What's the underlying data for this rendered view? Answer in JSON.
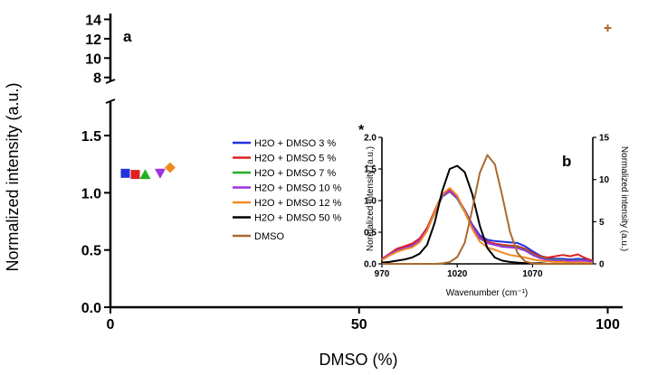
{
  "chart_data": [
    {
      "panel_label": "a",
      "type": "scatter",
      "xlabel": "DMSO (%)",
      "ylabel": "Normalized intensity (a.u.)",
      "xlim": [
        0,
        103
      ],
      "ylim_lower": [
        0,
        1.8
      ],
      "ylim_upper": [
        7.6,
        14.6
      ],
      "x_ticks": [
        "0",
        "50",
        "100"
      ],
      "y_ticks_lower": [
        "0.0",
        "0.5",
        "1.0",
        "1.5"
      ],
      "y_ticks_upper": [
        "8",
        "10",
        "12",
        "14"
      ],
      "series": [
        {
          "name": "H2O + DMSO 3 %",
          "color": "#2233dd",
          "marker": "square",
          "x": 3,
          "y": 1.17
        },
        {
          "name": "H2O + DMSO 5 %",
          "color": "#e02020",
          "marker": "square",
          "x": 5,
          "y": 1.16
        },
        {
          "name": "H2O + DMSO 7 %",
          "color": "#20b020",
          "marker": "triangle-up",
          "x": 7,
          "y": 1.16
        },
        {
          "name": "H2O + DMSO 10 %",
          "color": "#a030e0",
          "marker": "triangle-down",
          "x": 10,
          "y": 1.17
        },
        {
          "name": "H2O + DMSO 12 %",
          "color": "#f08a20",
          "marker": "diamond",
          "x": 12,
          "y": 1.22
        },
        {
          "name": "H2O + DMSO 50 %",
          "color": "#000000",
          "marker": "star",
          "x": 50,
          "y": null
        },
        {
          "name": "DMSO",
          "color": "#a86a2e",
          "marker": "plus",
          "x": 100,
          "y": 13.1
        }
      ],
      "legend_position": "center-right"
    },
    {
      "panel_label": "b",
      "type": "line",
      "xlabel": "Wavenumber (cm⁻¹)",
      "ylabel_left": "Normalized intensity (a.u.)",
      "ylabel_right": "Normalized intensity (a.u.)",
      "xlim": [
        970,
        1110
      ],
      "ylim_left": [
        0,
        2.0
      ],
      "ylim_right": [
        0,
        15
      ],
      "x_ticks": [
        "970",
        "1020",
        "1070"
      ],
      "y_ticks_left": [
        "0.0",
        "0.5",
        "1.0",
        "1.5",
        "2.0"
      ],
      "y_ticks_right": [
        "0",
        "5",
        "10",
        "15"
      ],
      "asterisk": "*",
      "x": [
        970,
        975,
        980,
        985,
        990,
        995,
        1000,
        1005,
        1010,
        1015,
        1020,
        1025,
        1030,
        1035,
        1040,
        1045,
        1050,
        1055,
        1060,
        1065,
        1070,
        1075,
        1080,
        1085,
        1090,
        1095,
        1100,
        1105,
        1110
      ],
      "series": [
        {
          "name": "H2O + DMSO 3 %",
          "color": "#2233dd",
          "axis": "left",
          "y": [
            0.08,
            0.15,
            0.22,
            0.26,
            0.3,
            0.38,
            0.55,
            0.82,
            1.08,
            1.16,
            1.05,
            0.85,
            0.62,
            0.45,
            0.38,
            0.36,
            0.35,
            0.34,
            0.33,
            0.28,
            0.2,
            0.13,
            0.09,
            0.08,
            0.08,
            0.07,
            0.08,
            0.07,
            0.05
          ]
        },
        {
          "name": "H2O + DMSO 5 %",
          "color": "#e02020",
          "axis": "left",
          "y": [
            0.08,
            0.16,
            0.24,
            0.28,
            0.32,
            0.4,
            0.57,
            0.84,
            1.1,
            1.18,
            1.06,
            0.84,
            0.6,
            0.42,
            0.35,
            0.32,
            0.3,
            0.29,
            0.28,
            0.24,
            0.17,
            0.12,
            0.1,
            0.12,
            0.14,
            0.12,
            0.15,
            0.09,
            0.05
          ]
        },
        {
          "name": "H2O + DMSO 7 %",
          "color": "#20b020",
          "axis": "left",
          "y": [
            0.07,
            0.14,
            0.2,
            0.24,
            0.28,
            0.36,
            0.53,
            0.8,
            1.06,
            1.14,
            1.03,
            0.82,
            0.58,
            0.4,
            0.33,
            0.3,
            0.28,
            0.27,
            0.26,
            0.22,
            0.15,
            0.1,
            0.07,
            0.06,
            0.06,
            0.05,
            0.06,
            0.05,
            0.04
          ]
        },
        {
          "name": "H2O + DMSO 10 %",
          "color": "#a030e0",
          "axis": "left",
          "y": [
            0.07,
            0.15,
            0.21,
            0.25,
            0.29,
            0.37,
            0.54,
            0.81,
            1.07,
            1.15,
            1.04,
            0.83,
            0.59,
            0.41,
            0.33,
            0.3,
            0.27,
            0.26,
            0.25,
            0.21,
            0.14,
            0.09,
            0.06,
            0.05,
            0.05,
            0.05,
            0.05,
            0.05,
            0.04
          ]
        },
        {
          "name": "H2O + DMSO 12 %",
          "color": "#f08a20",
          "axis": "left",
          "y": [
            0.06,
            0.13,
            0.19,
            0.23,
            0.26,
            0.34,
            0.52,
            0.82,
            1.1,
            1.2,
            1.08,
            0.82,
            0.55,
            0.35,
            0.26,
            0.22,
            0.18,
            0.14,
            0.12,
            0.1,
            0.07,
            0.05,
            0.04,
            0.03,
            0.03,
            0.02,
            0.02,
            0.02,
            0.01
          ]
        },
        {
          "name": "H2O + DMSO 50 %",
          "color": "#000000",
          "axis": "left",
          "y": [
            0.02,
            0.03,
            0.05,
            0.07,
            0.1,
            0.16,
            0.3,
            0.65,
            1.15,
            1.5,
            1.55,
            1.45,
            1.1,
            0.6,
            0.25,
            0.1,
            0.05,
            0.03,
            0.02,
            0.01,
            0.01,
            0.01,
            0.0,
            0.0,
            0.0,
            0.0,
            0.0,
            0.0,
            0.0
          ]
        },
        {
          "name": "DMSO",
          "color": "#a86a2e",
          "axis": "right",
          "y": [
            0,
            0,
            0,
            0,
            0,
            0,
            0,
            0,
            0.05,
            0.2,
            0.8,
            2.5,
            6.5,
            10.8,
            12.9,
            11.8,
            8.0,
            3.8,
            1.3,
            0.3,
            0.05,
            0,
            0,
            0,
            0,
            0,
            0,
            0,
            0
          ]
        }
      ]
    }
  ]
}
